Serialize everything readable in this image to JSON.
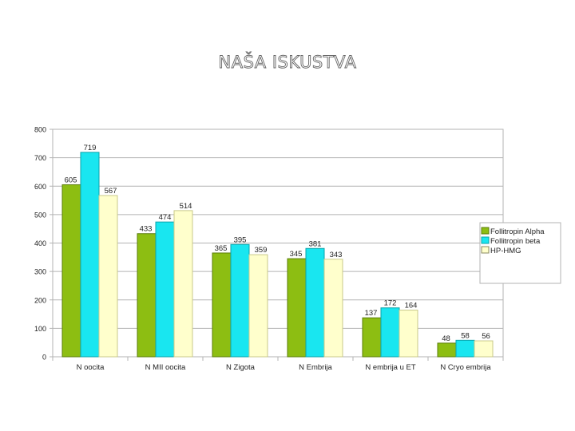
{
  "slide": {
    "title": "NAŠA ISKUSTVA"
  },
  "chart_data": {
    "type": "bar",
    "categories": [
      "N oocita",
      "N MII oocita",
      "N Zigota",
      "N Embrija",
      "N embrija u ET",
      "N Cryo embrija"
    ],
    "series": [
      {
        "name": "Follitropin Alpha",
        "values": [
          605,
          433,
          365,
          345,
          137,
          48
        ],
        "color": "#8dbe12"
      },
      {
        "name": "Follitropin beta",
        "values": [
          719,
          474,
          395,
          381,
          172,
          58
        ],
        "color": "#19e6f0"
      },
      {
        "name": "HP-HMG",
        "values": [
          567,
          514,
          359,
          343,
          164,
          56
        ],
        "color": "#ffffcc"
      }
    ],
    "data_labels": [
      [
        "605",
        "433",
        "365",
        "345",
        "137",
        "48"
      ],
      [
        "719",
        "474",
        "395",
        "381",
        "172",
        "58"
      ],
      [
        "567",
        "514",
        "359",
        "343",
        "164",
        "56"
      ]
    ],
    "y_ticks": [
      "0",
      "100",
      "200",
      "300",
      "400",
      "500",
      "600",
      "700",
      "800"
    ],
    "ylim": [
      0,
      800
    ],
    "grid": true,
    "legend_position": "right",
    "title": "",
    "xlabel": "",
    "ylabel": ""
  }
}
